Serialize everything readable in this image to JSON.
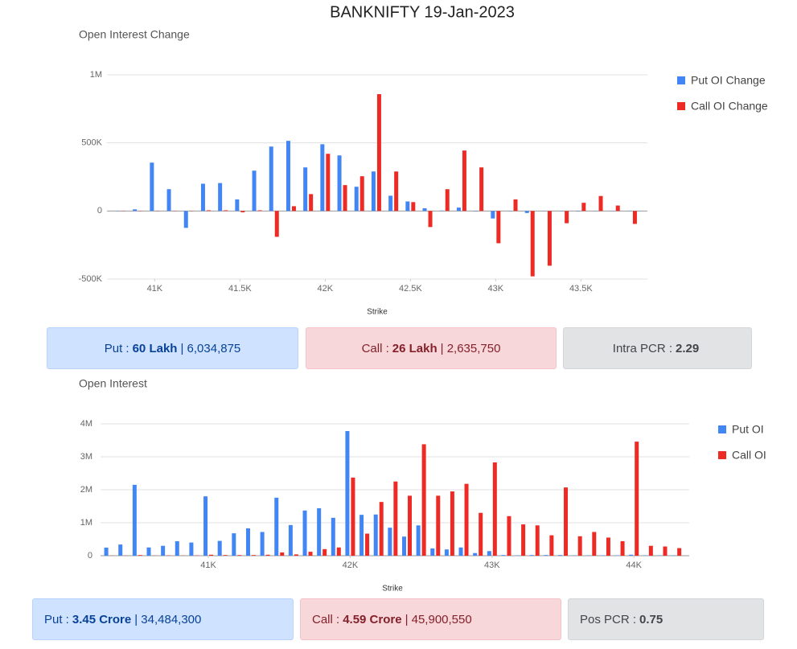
{
  "header_title": "BANKNIFTY 19-Jan-2023",
  "chart_data": [
    {
      "type": "bar",
      "title": "Open Interest Change",
      "x_label": "Strike",
      "grid": true,
      "legend": "right",
      "x": [
        40800,
        40900,
        41000,
        41100,
        41200,
        41300,
        41400,
        41500,
        41600,
        41700,
        41800,
        41900,
        42000,
        42100,
        42200,
        42300,
        42400,
        42500,
        42600,
        42700,
        42800,
        42900,
        43000,
        43100,
        43200,
        43300,
        43400,
        43500,
        43600,
        43700,
        43800
      ],
      "series": [
        {
          "name": "Put OI Change",
          "color": "#4285f4",
          "values": [
            2000,
            12000,
            355000,
            160000,
            -124000,
            200000,
            205000,
            85000,
            296000,
            473000,
            515000,
            320000,
            490000,
            408000,
            178000,
            290000,
            112000,
            70000,
            20000,
            3000,
            25000,
            -3000,
            -55000,
            2000,
            -15000,
            2000,
            2000,
            -3000,
            2000,
            2000,
            2000
          ]
        },
        {
          "name": "Call OI Change",
          "color": "#ee2a24",
          "values": [
            2000,
            2000,
            2000,
            2000,
            2000,
            5000,
            5000,
            -10000,
            5000,
            -190000,
            35000,
            124000,
            420000,
            190000,
            255000,
            858000,
            290000,
            65000,
            -118000,
            160000,
            444000,
            320000,
            -237000,
            85000,
            -480000,
            -402000,
            -90000,
            60000,
            110000,
            40000,
            -95000
          ]
        }
      ],
      "xlim": [
        40720,
        43890
      ],
      "xticks": [
        {
          "value": 41000,
          "label": "41K"
        },
        {
          "value": 41500,
          "label": "41.5K"
        },
        {
          "value": 42000,
          "label": "42K"
        },
        {
          "value": 42500,
          "label": "42.5K"
        },
        {
          "value": 43000,
          "label": "43K"
        },
        {
          "value": 43500,
          "label": "43.5K"
        }
      ],
      "ylim": [
        -500000,
        1000000
      ],
      "yticks": [
        {
          "value": -500000,
          "label": "-500K"
        },
        0,
        {
          "value": 500000,
          "label": "500K"
        },
        {
          "value": 1000000,
          "label": "1M"
        }
      ]
    },
    {
      "type": "bar",
      "title": "Open Interest",
      "x_label": "Strike",
      "grid": true,
      "legend": "right",
      "x": [
        40300,
        40400,
        40500,
        40600,
        40700,
        40800,
        40900,
        41000,
        41100,
        41200,
        41300,
        41400,
        41500,
        41600,
        41700,
        41800,
        41900,
        42000,
        42100,
        42200,
        42300,
        42400,
        42500,
        42600,
        42700,
        42800,
        42900,
        43000,
        43100,
        43200,
        43300,
        43400,
        43500,
        43600,
        43700,
        43800,
        43900,
        44000,
        44100,
        44200,
        44300
      ],
      "series": [
        {
          "name": "Put OI",
          "color": "#4285f4",
          "values": [
            245000,
            340000,
            2150000,
            250000,
            300000,
            440000,
            400000,
            1800000,
            450000,
            680000,
            830000,
            720000,
            1760000,
            930000,
            1370000,
            1440000,
            1150000,
            3780000,
            1240000,
            1250000,
            850000,
            580000,
            920000,
            220000,
            190000,
            250000,
            80000,
            140000,
            20000,
            10000,
            20000,
            20000,
            20000,
            10000,
            10000,
            10000,
            10000,
            30000,
            10000,
            10000,
            10000
          ]
        },
        {
          "name": "Call OI",
          "color": "#ee2a24",
          "values": [
            5000,
            5000,
            20000,
            5000,
            10000,
            5000,
            10000,
            30000,
            20000,
            20000,
            20000,
            30000,
            100000,
            40000,
            120000,
            200000,
            250000,
            2370000,
            670000,
            1630000,
            2250000,
            1820000,
            3380000,
            1820000,
            1950000,
            2180000,
            1300000,
            2830000,
            1200000,
            950000,
            920000,
            620000,
            2070000,
            590000,
            720000,
            550000,
            440000,
            3460000,
            300000,
            280000,
            230000
          ]
        }
      ],
      "xlim": [
        40240,
        44390
      ],
      "xticks": [
        {
          "value": 41000,
          "label": "41K"
        },
        {
          "value": 42000,
          "label": "42K"
        },
        {
          "value": 43000,
          "label": "43K"
        },
        {
          "value": 44000,
          "label": "44K"
        }
      ],
      "ylim": [
        0,
        4000000
      ],
      "yticks": [
        0,
        {
          "value": 1000000,
          "label": "1M"
        },
        {
          "value": 2000000,
          "label": "2M"
        },
        {
          "value": 3000000,
          "label": "3M"
        },
        {
          "value": 4000000,
          "label": "4M"
        }
      ]
    }
  ],
  "summary": [
    [
      {
        "label": "Put :",
        "bold": "60 Lakh",
        "rest": "| 6,034,875"
      },
      {
        "label": "Call :",
        "bold": "26 Lakh",
        "rest": "| 2,635,750"
      },
      {
        "label": "Intra PCR :",
        "bold": "2.29"
      }
    ],
    [
      {
        "label": "Put :",
        "bold": "3.45 Crore",
        "rest": "| 34,484,300"
      },
      {
        "label": "Call :",
        "bold": "4.59 Crore",
        "rest": "| 45,900,550"
      },
      {
        "label": "Pos PCR :",
        "bold": "0.75"
      }
    ]
  ]
}
